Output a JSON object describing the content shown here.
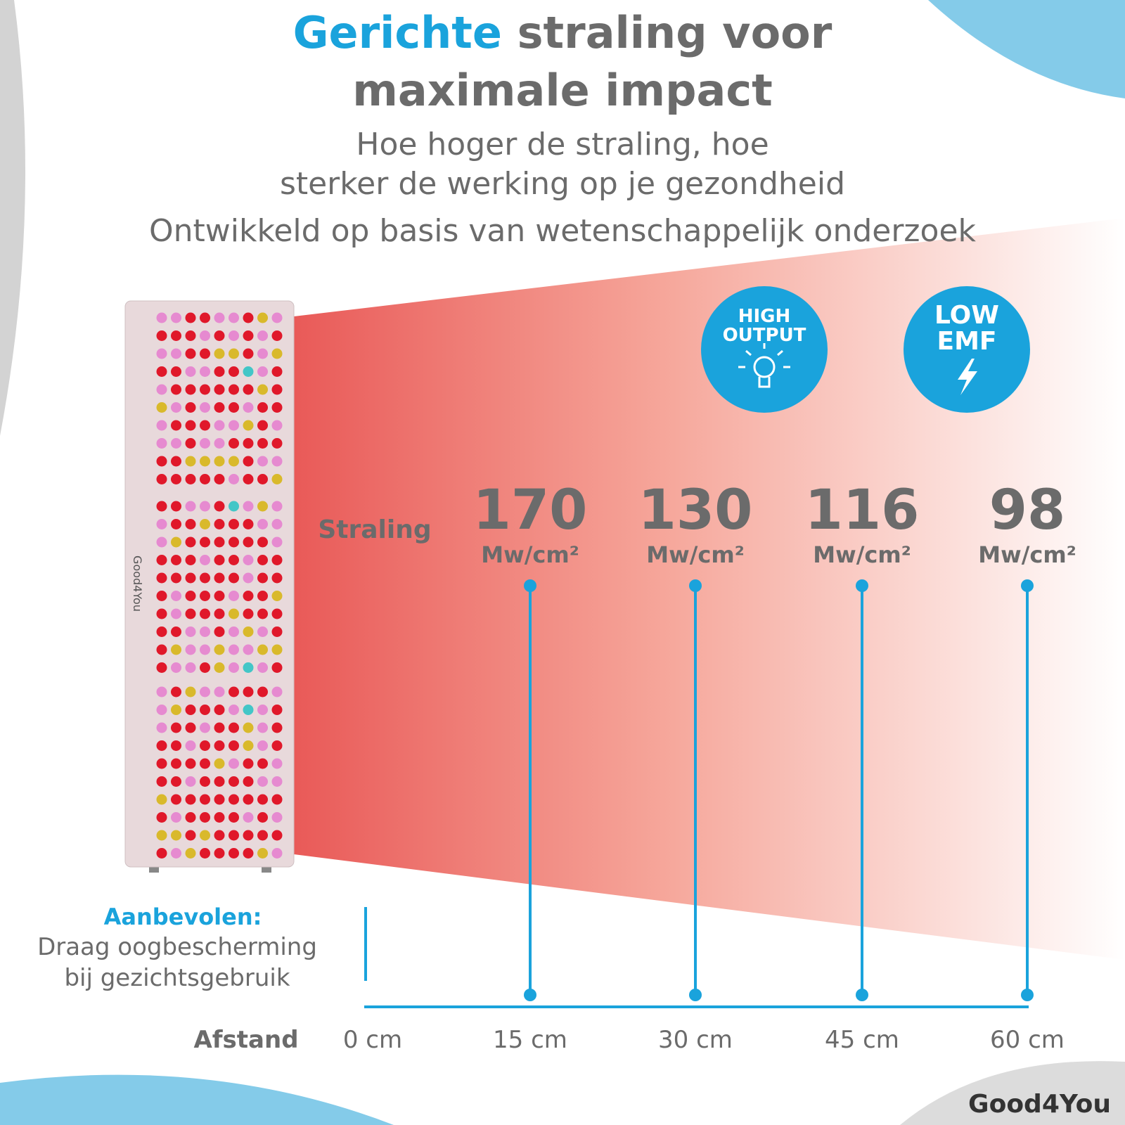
{
  "header": {
    "title_highlight": "Gerichte",
    "title_line1_rest": "straling voor",
    "title_line2": "maximale impact",
    "subtitle_line1": "Hoe hoger de straling, hoe",
    "subtitle_line2": "sterker de werking op je gezondheid",
    "tagline": "Ontwikkeld op basis van wetenschappelijk onderzoek"
  },
  "badges": [
    {
      "line1": "HIGH",
      "line2": "OUTPUT"
    },
    {
      "line1": "LOW",
      "line2": "EMF"
    }
  ],
  "product": {
    "brand": "Good4You"
  },
  "measurements": {
    "row_label": "Straling",
    "unit": "Mw/cm²",
    "axis_label": "Afstand",
    "origin": "0 cm",
    "points": [
      {
        "value": 170,
        "distance": "15 cm"
      },
      {
        "value": 130,
        "distance": "30 cm"
      },
      {
        "value": 116,
        "distance": "45 cm"
      },
      {
        "value": 98,
        "distance": "60 cm"
      }
    ]
  },
  "note": {
    "title": "Aanbevolen:",
    "line1": "Draag oogbescherming",
    "line2": "bij gezichtsgebruik"
  },
  "logo": "Good4You"
}
